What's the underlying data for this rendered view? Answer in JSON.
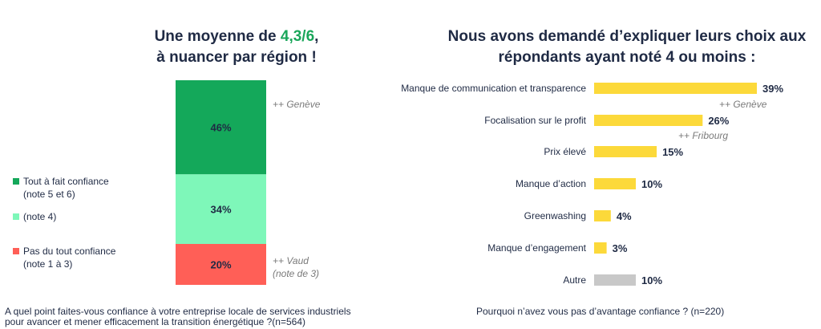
{
  "left": {
    "title_line1_pre": "Une moyenne de ",
    "title_line1_hl": "4,3/6",
    "title_line1_post": ",",
    "title_line2": "à nuancer par région !",
    "legend": [
      {
        "line1": "Tout à fait confiance",
        "line2": "(note 5 et 6)",
        "color": "#14a85a"
      },
      {
        "line1": "(note 4)",
        "line2": "",
        "color": "#7ef7b9"
      },
      {
        "line1": "Pas du tout confiance",
        "line2": "(note 1 à 3)",
        "color": "#ff5f57"
      }
    ],
    "notes": {
      "geneve": "++ Genève",
      "vaud_line1": "++ Vaud",
      "vaud_line2": "(note de 3)"
    },
    "question_line1": "A quel point faites-vous confiance à votre entreprise locale de services industriels",
    "question_line2": "pour avancer et mener efficacement la transition énergétique ?(n=564)"
  },
  "right": {
    "title_line1": "Nous avons demandé d’expliquer leurs choix aux",
    "title_line2": "répondants ayant noté 4 ou moins :",
    "notes": {
      "geneve": "++ Genève",
      "fribourg": "++ Fribourg"
    },
    "question": "Pourquoi n’avez vous pas d’avantage confiance ? (n=220)"
  },
  "chart_data": [
    {
      "type": "bar",
      "orientation": "stacked-vertical",
      "categories": [
        "Tout à fait confiance (note 5 et 6)",
        "(note 4)",
        "Pas du tout confiance (note 1 à 3)"
      ],
      "values": [
        46,
        34,
        20
      ],
      "labels": [
        "46%",
        "34%",
        "20%"
      ],
      "colors": [
        "#14a85a",
        "#7ef7b9",
        "#ff5f57"
      ]
    },
    {
      "type": "bar",
      "orientation": "horizontal",
      "categories": [
        "Manque de communication et transparence",
        "Focalisation sur le  profit",
        "Prix élevé",
        "Manque d’action",
        "Greenwashing",
        "Manque d’engagement",
        "Autre"
      ],
      "values": [
        39,
        26,
        15,
        10,
        4,
        3,
        10
      ],
      "labels": [
        "39%",
        "26%",
        "15%",
        "10%",
        "4%",
        "3%",
        "10%"
      ],
      "colors": [
        "#fcd93a",
        "#fcd93a",
        "#fcd93a",
        "#fcd93a",
        "#fcd93a",
        "#fcd93a",
        "#c8c8c8"
      ]
    }
  ]
}
